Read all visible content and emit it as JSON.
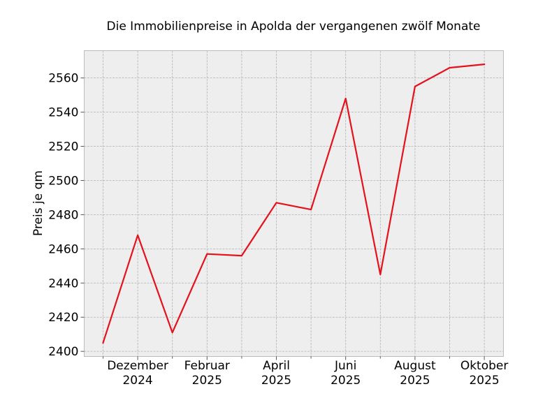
{
  "chart_data": {
    "type": "line",
    "title": "Die Immobilienpreise in Apolda der vergangenen zwölf Monate",
    "xlabel": "",
    "ylabel": "Preis je qm",
    "x": [
      "2024-11",
      "2024-12",
      "2025-01",
      "2025-02",
      "2025-03",
      "2025-04",
      "2025-05",
      "2025-06",
      "2025-07",
      "2025-08",
      "2025-09",
      "2025-10"
    ],
    "x_tick_labels": [
      {
        "line1": "Dezember",
        "line2": "2024"
      },
      {
        "line1": "Februar",
        "line2": "2025"
      },
      {
        "line1": "April",
        "line2": "2025"
      },
      {
        "line1": "Juni",
        "line2": "2025"
      },
      {
        "line1": "August",
        "line2": "2025"
      },
      {
        "line1": "Oktober",
        "line2": "2025"
      }
    ],
    "series": [
      {
        "values": [
          2405,
          2468,
          2411,
          2457,
          2456,
          2487,
          2483,
          2548,
          2445,
          2555,
          2566,
          2568
        ],
        "color": "#e3121c"
      }
    ],
    "ylim": [
      2397,
      2576
    ],
    "y_ticks": [
      2400,
      2420,
      2440,
      2460,
      2480,
      2500,
      2520,
      2540,
      2560
    ],
    "grid": true,
    "legend": false,
    "background": "#eeeeee"
  }
}
